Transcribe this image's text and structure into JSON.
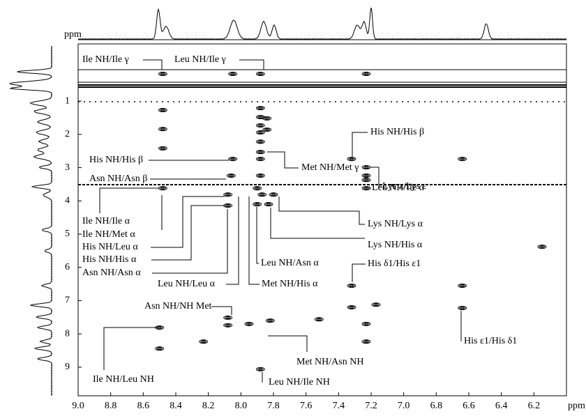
{
  "chart_data": {
    "type": "scatter",
    "x_label": "ppm",
    "y_label": "ppm",
    "xlim": [
      9,
      6
    ],
    "ylim": [
      -0.72,
      9.86
    ],
    "reverse_x": true,
    "color": "#000000",
    "xticks": [
      {
        "value": 9,
        "label": "9.0"
      },
      8.8,
      8.6,
      8.4,
      8.2,
      {
        "value": 8,
        "label": "8.0"
      },
      7.8,
      7.6,
      7.4,
      7.2,
      {
        "value": 7,
        "label": "7.0"
      },
      6.8,
      6.6,
      6.4,
      6.2
    ],
    "yticks": [
      1,
      2,
      3,
      4,
      5,
      6,
      7,
      8,
      9
    ],
    "series": [
      {
        "x": [
          8.48,
          8.05,
          7.88,
          7.23,
          8.48,
          8.48,
          8.48,
          7.88,
          7.88,
          7.88,
          7.88,
          7.88,
          7.88,
          7.84,
          7.84,
          8.05,
          8.06,
          7.88,
          7.88,
          7.32,
          7.23,
          7.23,
          7.23,
          6.64,
          8.48,
          8.08,
          8.08,
          7.9,
          7.87,
          7.8,
          7.9,
          7.83,
          7.23,
          7.32,
          6.64,
          7.32,
          7.17,
          6.64,
          8.08,
          8.08,
          7.95,
          7.82,
          7.52,
          8.5,
          7.23,
          7.23,
          8.23,
          8.5,
          7.88,
          6.15
        ],
        "values": [
          0.18,
          0.18,
          0.18,
          0.18,
          1.27,
          1.84,
          2.42,
          1.21,
          1.48,
          1.73,
          1.94,
          2.22,
          2.53,
          1.52,
          1.86,
          2.74,
          3.24,
          2.74,
          3.24,
          2.74,
          2.99,
          3.24,
          3.37,
          2.74,
          3.62,
          3.81,
          4.14,
          3.62,
          3.81,
          3.81,
          4.1,
          4.1,
          3.62,
          6.55,
          6.55,
          7.2,
          7.12,
          7.22,
          7.51,
          7.74,
          7.7,
          7.6,
          7.56,
          7.81,
          7.7,
          8.23,
          8.23,
          8.44,
          9.06,
          5.38
        ]
      }
    ],
    "annotations": [
      "Ile NH/Ile γ",
      "Leu NH/Ile γ",
      "His NH/His β",
      "His NH/His β",
      "Asn NH/Asn β",
      "Met NH/Met γ",
      "Lys z/Lys ε",
      "Leu NH/Ile α",
      "Ile NH/Ile α",
      "Lys NH/Lys α",
      "Ile NH/Met α",
      "Lys NH/His α",
      "His NH/Leu α",
      "His NH/His α",
      "Asn NH/Asn α",
      "Leu NH/Asn α",
      "Leu NH/Leu α",
      "Met NH/His α",
      "His δ1/His ε1",
      "Asn NH/NH Met",
      "His ε1/His  δ1",
      "Ile NH/Leu NH",
      "Met NH/Asn NH",
      "Leu NH/Ile NH"
    ]
  }
}
